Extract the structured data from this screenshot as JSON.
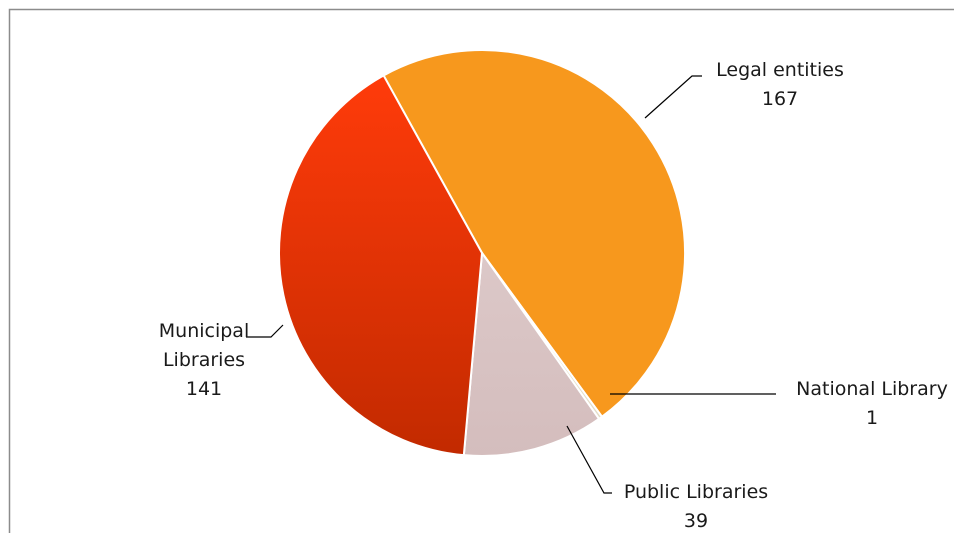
{
  "chart_data": {
    "type": "pie",
    "title": "",
    "legend": "none",
    "slices": [
      {
        "name": "Legal entities",
        "value": 167,
        "color": "#f7981d",
        "gradient": [
          "#f7981d",
          "#f7981d"
        ]
      },
      {
        "name": "National Library",
        "value": 1,
        "color": "#e8e2cf",
        "gradient": [
          "#efe8d4",
          "#e3dcc6"
        ]
      },
      {
        "name": "Public Libraries",
        "value": 39,
        "color": "#d9c3c3",
        "gradient": [
          "#dcc8c8",
          "#d4bdbd"
        ]
      },
      {
        "name": "Municipal Libraries",
        "value": 141,
        "color": "#e63a0e",
        "gradient": [
          "#ff3b0a",
          "#c22a00"
        ]
      }
    ],
    "labels": [
      {
        "lines": [
          "Legal entities",
          "167"
        ]
      },
      {
        "lines": [
          "National Library",
          "1"
        ]
      },
      {
        "lines": [
          "Public Libraries",
          "39"
        ]
      },
      {
        "lines": [
          "Municipal",
          "Libraries",
          "141"
        ]
      }
    ]
  }
}
